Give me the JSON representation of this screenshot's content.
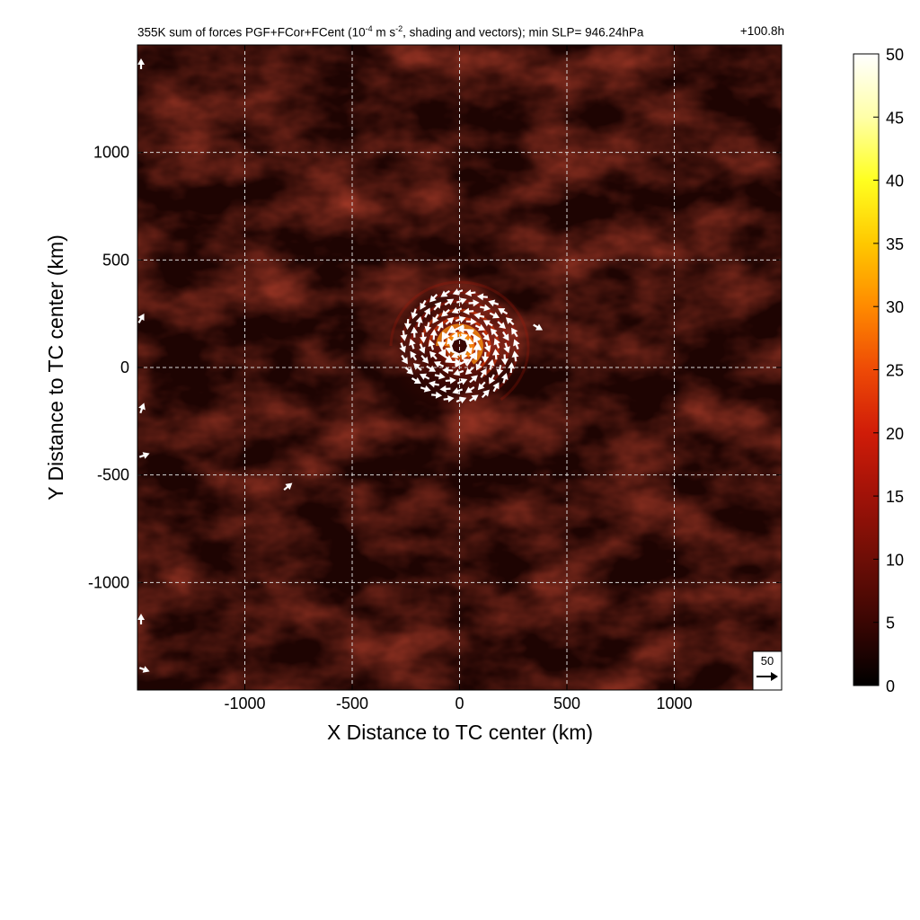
{
  "title": {
    "main_prefix": "355K sum of forces PGF+FCor+FCent (10",
    "main_exp1": "-4",
    "main_mid": " m s",
    "main_exp2": "-2",
    "main_suffix": ", shading and vectors); min SLP= 946.24hPa",
    "time": "+100.8h"
  },
  "chart_data": {
    "type": "heatmap",
    "xlabel": "X Distance to TC center (km)",
    "ylabel": "Y Distance to TC center (km)",
    "xlim": [
      -1500,
      1500
    ],
    "ylim": [
      -1500,
      1500
    ],
    "xticks": [
      -1000,
      -500,
      0,
      500,
      1000
    ],
    "yticks": [
      -1000,
      -500,
      0,
      500,
      1000
    ],
    "xtick_labels": [
      "-1000",
      "-500",
      "0",
      "500",
      "1000"
    ],
    "ytick_labels": [
      "-1000",
      "-500",
      "0",
      "500",
      "1000"
    ],
    "grid": true,
    "colorbar": {
      "min": 0,
      "max": 50,
      "ticks": [
        0,
        5,
        10,
        15,
        20,
        25,
        30,
        35,
        40,
        45,
        50
      ],
      "tick_labels": [
        "0",
        "5",
        "10",
        "15",
        "20",
        "25",
        "30",
        "35",
        "40",
        "45",
        "50"
      ],
      "colormap": [
        "#000000",
        "#3a0603",
        "#6e0e06",
        "#a01208",
        "#d01c08",
        "#ee4a06",
        "#ff8a00",
        "#ffc800",
        "#ffff20",
        "#ffffa8",
        "#ffffff"
      ]
    },
    "reference_vector": {
      "label": "50",
      "magnitude": 50
    },
    "field_description_free": true,
    "features": {
      "vortex_center_km": [
        0,
        100
      ],
      "max_ring_radius_km": 80
    }
  }
}
